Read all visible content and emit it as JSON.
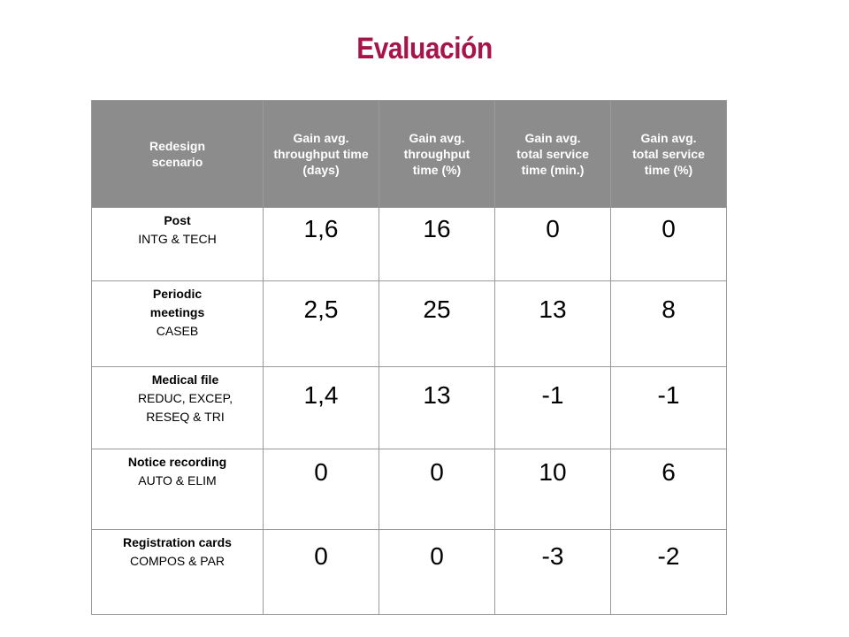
{
  "title": "Evaluación",
  "table": {
    "headers": [
      "Redesign scenario",
      "Gain avg. throughput time (days)",
      "Gain avg. throughput time (%)",
      "Gain avg. total service time (min.)",
      "Gain avg. total service time (%)"
    ],
    "rows": [
      {
        "scenario_name": "Post",
        "scenario_code": "INTG & TECH",
        "values": [
          "1,6",
          "16",
          "0",
          "0"
        ]
      },
      {
        "scenario_name": "Periodic meetings",
        "scenario_code": "CASEB",
        "values": [
          "2,5",
          "25",
          "13",
          "8"
        ]
      },
      {
        "scenario_name": "Medical file",
        "scenario_code": "REDUC, EXCEP, RESEQ & TRI",
        "values": [
          "1,4",
          "13",
          "-1",
          "-1"
        ]
      },
      {
        "scenario_name": "Notice recording",
        "scenario_code": "AUTO & ELIM",
        "values": [
          "0",
          "0",
          "10",
          "6"
        ]
      },
      {
        "scenario_name": "Registration cards",
        "scenario_code": "COMPOS & PAR",
        "values": [
          "0",
          "0",
          "-3",
          "-2"
        ]
      }
    ]
  },
  "colors": {
    "title": "#a8144a",
    "header_bg": "#8c8c8c",
    "header_text": "#ffffff",
    "border": "#9a9a9a"
  }
}
